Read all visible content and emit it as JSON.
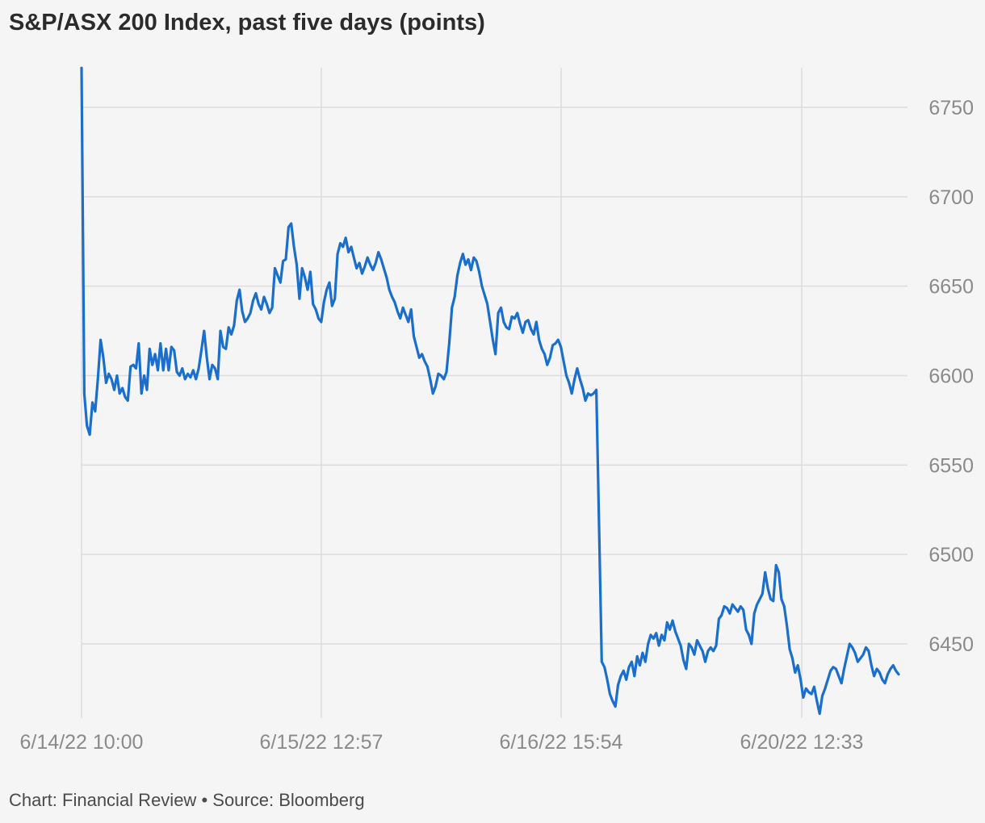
{
  "title": "S&P/ASX 200 Index, past five days (points)",
  "footer": {
    "credit": "Chart: Financial Review",
    "separator": "•",
    "source": "Source: Bloomberg"
  },
  "colors": {
    "line": "#1a6ecc",
    "grid": "#dcdcdc",
    "tick_text": "#8a8a8a",
    "background": "#f5f5f5"
  },
  "chart_data": {
    "type": "line",
    "title": "S&P/ASX 200 Index, past five days (points)",
    "xlabel": "",
    "ylabel": "",
    "ylim": [
      6410,
      6772
    ],
    "y_ticks": [
      6450,
      6500,
      6550,
      6600,
      6650,
      6700,
      6750
    ],
    "x_ticks": [
      "6/14/22 10:00",
      "6/15/22 12:57",
      "6/16/22 15:54",
      "6/20/22 12:33"
    ],
    "grid": true,
    "y_axis_side": "right",
    "series": [
      {
        "values": [
          6772,
          6590,
          6572,
          6567,
          6585,
          6580,
          6598,
          6620,
          6610,
          6596,
          6601,
          6598,
          6592,
          6600,
          6590,
          6593,
          6588,
          6586,
          6605,
          6606,
          6604,
          6618,
          6590,
          6600,
          6592,
          6615,
          6606,
          6612,
          6603,
          6618,
          6603,
          6615,
          6603,
          6616,
          6614,
          6602,
          6600,
          6604,
          6598,
          6601,
          6599,
          6603,
          6598,
          6604,
          6614,
          6625,
          6610,
          6598,
          6606,
          6604,
          6598,
          6625,
          6616,
          6615,
          6627,
          6623,
          6628,
          6642,
          6648,
          6636,
          6630,
          6632,
          6635,
          6642,
          6646,
          6640,
          6637,
          6644,
          6640,
          6635,
          6638,
          6660,
          6656,
          6652,
          6664,
          6665,
          6683,
          6685,
          6672,
          6662,
          6643,
          6660,
          6655,
          6648,
          6658,
          6640,
          6637,
          6632,
          6630,
          6641,
          6648,
          6652,
          6639,
          6643,
          6668,
          6674,
          6672,
          6677,
          6669,
          6672,
          6666,
          6660,
          6663,
          6657,
          6661,
          6666,
          6662,
          6659,
          6663,
          6669,
          6665,
          6660,
          6655,
          6648,
          6644,
          6641,
          6636,
          6632,
          6638,
          6634,
          6630,
          6637,
          6622,
          6616,
          6610,
          6612,
          6608,
          6605,
          6598,
          6590,
          6594,
          6601,
          6600,
          6598,
          6602,
          6618,
          6638,
          6644,
          6656,
          6663,
          6668,
          6662,
          6665,
          6659,
          6666,
          6664,
          6658,
          6650,
          6645,
          6640,
          6630,
          6620,
          6612,
          6635,
          6638,
          6630,
          6627,
          6626,
          6633,
          6632,
          6635,
          6629,
          6624,
          6630,
          6631,
          6626,
          6623,
          6630,
          6620,
          6615,
          6612,
          6606,
          6610,
          6617,
          6618,
          6620,
          6616,
          6608,
          6600,
          6596,
          6590,
          6598,
          6604,
          6598,
          6593,
          6586,
          6590,
          6589,
          6590,
          6592,
          6518,
          6440,
          6437,
          6430,
          6422,
          6418,
          6415,
          6427,
          6432,
          6435,
          6430,
          6437,
          6440,
          6432,
          6443,
          6438,
          6445,
          6440,
          6450,
          6455,
          6453,
          6456,
          6449,
          6455,
          6452,
          6462,
          6458,
          6463,
          6457,
          6453,
          6449,
          6441,
          6436,
          6450,
          6448,
          6444,
          6452,
          6449,
          6446,
          6440,
          6446,
          6448,
          6446,
          6449,
          6464,
          6466,
          6471,
          6470,
          6467,
          6472,
          6470,
          6468,
          6471,
          6469,
          6458,
          6455,
          6450,
          6467,
          6472,
          6475,
          6478,
          6490,
          6481,
          6475,
          6474,
          6494,
          6490,
          6475,
          6471,
          6460,
          6447,
          6442,
          6434,
          6438,
          6430,
          6420,
          6425,
          6423,
          6422,
          6426,
          6418,
          6411,
          6421,
          6425,
          6430,
          6435,
          6437,
          6436,
          6432,
          6428,
          6436,
          6443,
          6450,
          6448,
          6445,
          6440,
          6442,
          6444,
          6448,
          6446,
          6438,
          6432,
          6436,
          6434,
          6430,
          6428,
          6433,
          6436,
          6438,
          6435,
          6433
        ]
      }
    ]
  }
}
